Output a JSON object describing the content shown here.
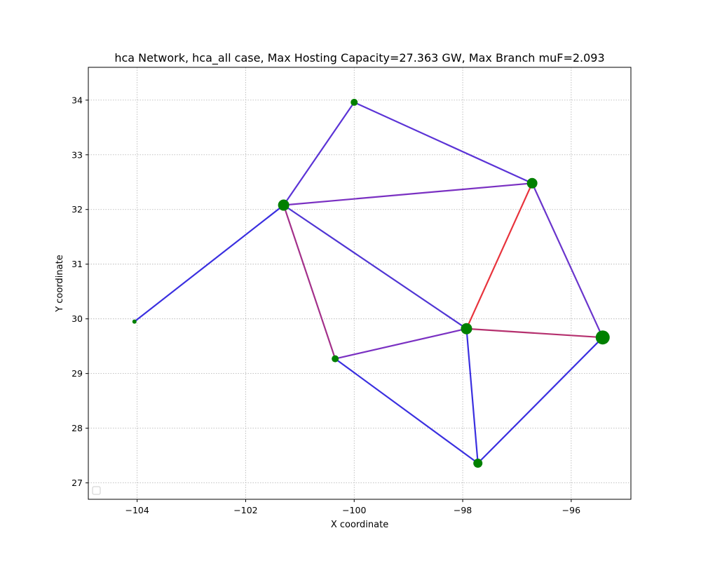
{
  "chart_data": {
    "type": "scatter",
    "title": "hca Network, hca_all case, Max Hosting Capacity=27.363 GW, Max Branch muF=2.093",
    "xlabel": "X coordinate",
    "ylabel": "Y coordinate",
    "xlim": [
      -104.9,
      -94.9
    ],
    "ylim": [
      26.7,
      34.6
    ],
    "xticks": [
      -104,
      -102,
      -100,
      -98,
      -96
    ],
    "xtick_labels": [
      "−104",
      "−102",
      "−100",
      "−98",
      "−96"
    ],
    "yticks": [
      27,
      28,
      29,
      30,
      31,
      32,
      33,
      34
    ],
    "ytick_labels": [
      "27",
      "28",
      "29",
      "30",
      "31",
      "32",
      "33",
      "34"
    ],
    "grid": true,
    "legend": "lower-left (empty)",
    "node_color": "#008000",
    "nodes": [
      {
        "id": "n1",
        "x": -104.05,
        "y": 29.95,
        "size": 3
      },
      {
        "id": "n2",
        "x": -101.3,
        "y": 32.08,
        "size": 8
      },
      {
        "id": "n3",
        "x": -100.0,
        "y": 33.96,
        "size": 5
      },
      {
        "id": "n4",
        "x": -96.72,
        "y": 32.48,
        "size": 7.5
      },
      {
        "id": "n5",
        "x": -100.35,
        "y": 29.27,
        "size": 5
      },
      {
        "id": "n6",
        "x": -97.93,
        "y": 29.82,
        "size": 8
      },
      {
        "id": "n7",
        "x": -95.42,
        "y": 29.66,
        "size": 10
      },
      {
        "id": "n8",
        "x": -97.72,
        "y": 27.36,
        "size": 6.5
      }
    ],
    "edges": [
      {
        "from": "n1",
        "to": "n2",
        "color": "#3a2fe0"
      },
      {
        "from": "n2",
        "to": "n3",
        "color": "#5b33d6"
      },
      {
        "from": "n3",
        "to": "n4",
        "color": "#5b33d6"
      },
      {
        "from": "n2",
        "to": "n4",
        "color": "#7a30c2"
      },
      {
        "from": "n2",
        "to": "n6",
        "color": "#5035d4"
      },
      {
        "from": "n2",
        "to": "n5",
        "color": "#a3308a"
      },
      {
        "from": "n4",
        "to": "n6",
        "color": "#e8333c"
      },
      {
        "from": "n4",
        "to": "n7",
        "color": "#6a35cc"
      },
      {
        "from": "n5",
        "to": "n6",
        "color": "#7a30c2"
      },
      {
        "from": "n6",
        "to": "n7",
        "color": "#b5306e"
      },
      {
        "from": "n5",
        "to": "n8",
        "color": "#3a2fe0"
      },
      {
        "from": "n6",
        "to": "n8",
        "color": "#3a2fe0"
      },
      {
        "from": "n8",
        "to": "n7",
        "color": "#3a2fe0"
      }
    ]
  }
}
